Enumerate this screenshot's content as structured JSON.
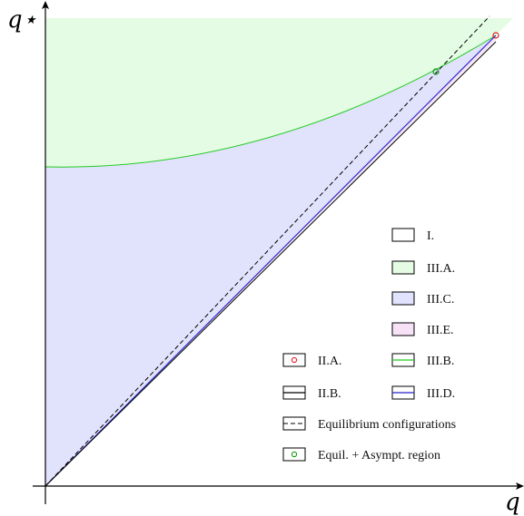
{
  "colors": {
    "region_III_A": "#e4fbe4",
    "region_III_C": "#e1e2fb",
    "region_III_E": "#f7e1f7",
    "curve_III_B": "#22cc22",
    "line_III_D": "#2222cc",
    "point_II_A": "#e02020",
    "point_equil_asympt": "#119911",
    "axis": "#000000"
  },
  "axes": {
    "x_label": "q",
    "y_label": "q⋆"
  },
  "legend": {
    "right_column": [
      {
        "key": "I",
        "label": "I.",
        "swatch": "box-white"
      },
      {
        "key": "III.A",
        "label": "III.A.",
        "swatch": "box-green-fill"
      },
      {
        "key": "III.C",
        "label": "III.C.",
        "swatch": "box-blue-fill"
      },
      {
        "key": "III.E",
        "label": "III.E.",
        "swatch": "box-pink-fill"
      },
      {
        "key": "III.B",
        "label": "III.B.",
        "swatch": "box-green-line"
      },
      {
        "key": "III.D",
        "label": "III.D.",
        "swatch": "box-blue-line"
      }
    ],
    "left_column": [
      {
        "key": "II.A",
        "label": "II.A.",
        "swatch": "box-red-circle"
      },
      {
        "key": "II.B",
        "label": "II.B.",
        "swatch": "box-black-line"
      }
    ],
    "bottom_rows": [
      {
        "key": "equilibrium",
        "label": "Equilibrium configurations",
        "swatch": "box-dashed"
      },
      {
        "key": "equil_asympt",
        "label": "Equil. + Asympt. region",
        "swatch": "box-green-circle"
      }
    ]
  }
}
